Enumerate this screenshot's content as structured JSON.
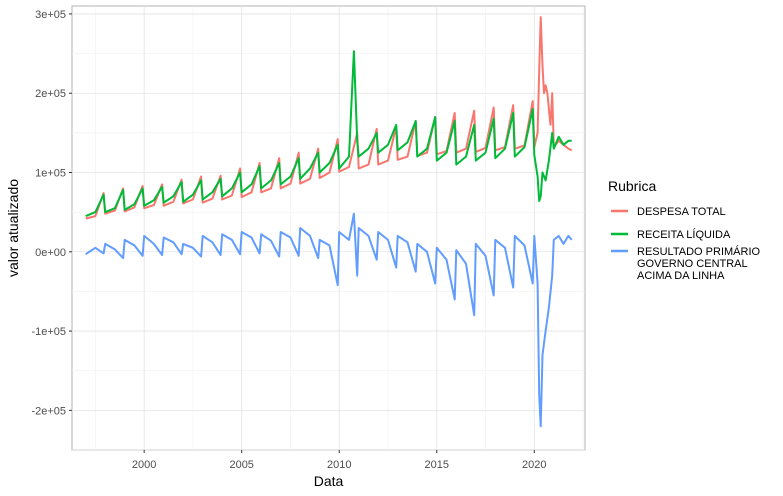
{
  "chart_data": {
    "type": "line",
    "xlabel": "Data",
    "ylabel": "valor atualizado",
    "xlim": [
      1996.3,
      2022.6
    ],
    "ylim": [
      -250000,
      310000
    ],
    "x_ticks": [
      2000,
      2005,
      2010,
      2015,
      2020
    ],
    "x_tick_labels": [
      "2000",
      "2005",
      "2010",
      "2015",
      "2020"
    ],
    "y_ticks": [
      -200000,
      -100000,
      0,
      100000,
      200000,
      300000
    ],
    "y_tick_labels": [
      "-2e+05",
      "-1e+05",
      "0e+00",
      "1e+05",
      "2e+05",
      "3e+05"
    ],
    "grid": true,
    "legend_position": "right",
    "legend_title": "Rubrica",
    "series": [
      {
        "name": "DESPESA TOTAL",
        "label_lines": [
          "DESPESA TOTAL"
        ],
        "color": "#f8766d",
        "x": [
          1997.0,
          1997.5,
          1997.92,
          1998.0,
          1998.5,
          1998.92,
          1999.0,
          1999.5,
          1999.92,
          2000.0,
          2000.5,
          2000.92,
          2001.0,
          2001.5,
          2001.92,
          2002.0,
          2002.5,
          2002.92,
          2003.0,
          2003.5,
          2003.92,
          2004.0,
          2004.5,
          2004.92,
          2005.0,
          2005.5,
          2005.92,
          2006.0,
          2006.5,
          2006.92,
          2007.0,
          2007.5,
          2007.92,
          2008.0,
          2008.5,
          2008.92,
          2009.0,
          2009.5,
          2009.92,
          2010.0,
          2010.5,
          2010.92,
          2011.0,
          2011.5,
          2011.92,
          2012.0,
          2012.5,
          2012.92,
          2013.0,
          2013.5,
          2013.92,
          2014.0,
          2014.5,
          2014.92,
          2015.0,
          2015.5,
          2015.92,
          2016.0,
          2016.5,
          2016.92,
          2017.0,
          2017.5,
          2017.92,
          2018.0,
          2018.5,
          2018.92,
          2019.0,
          2019.5,
          2019.92,
          2020.0,
          2020.17,
          2020.25,
          2020.33,
          2020.42,
          2020.5,
          2020.58,
          2020.67,
          2020.75,
          2020.83,
          2020.92,
          2021.0,
          2021.25,
          2021.5,
          2021.75,
          2021.92
        ],
        "y": [
          42000,
          45000,
          74000,
          48000,
          52000,
          80000,
          51000,
          56000,
          83000,
          55000,
          59000,
          85000,
          58000,
          63000,
          91000,
          61000,
          66000,
          95000,
          62000,
          67000,
          96000,
          66000,
          71000,
          105000,
          69000,
          75000,
          112000,
          75000,
          80000,
          118000,
          80000,
          86000,
          125000,
          86000,
          92000,
          130000,
          93000,
          100000,
          142000,
          101000,
          107000,
          150000,
          105000,
          110000,
          155000,
          110000,
          115000,
          158000,
          116000,
          120000,
          165000,
          121000,
          125000,
          170000,
          123000,
          127000,
          175000,
          125000,
          130000,
          178000,
          126000,
          131000,
          182000,
          128000,
          132000,
          185000,
          130000,
          134000,
          190000,
          132000,
          150000,
          228000,
          296000,
          235000,
          200000,
          210000,
          200000,
          180000,
          160000,
          200000,
          132000,
          140000,
          135000,
          130000,
          128000
        ]
      },
      {
        "name": "RECEITA LÍQUIDA",
        "label_lines": [
          "RECEITA LÍQUIDA"
        ],
        "color": "#00ba38",
        "x": [
          1997.0,
          1997.5,
          1997.92,
          1998.0,
          1998.5,
          1998.92,
          1999.0,
          1999.5,
          1999.92,
          2000.0,
          2000.5,
          2000.92,
          2001.0,
          2001.5,
          2001.92,
          2002.0,
          2002.5,
          2002.92,
          2003.0,
          2003.5,
          2003.92,
          2004.0,
          2004.5,
          2004.92,
          2005.0,
          2005.5,
          2005.92,
          2006.0,
          2006.5,
          2006.92,
          2007.0,
          2007.5,
          2007.92,
          2008.0,
          2008.5,
          2008.92,
          2009.0,
          2009.5,
          2009.92,
          2010.0,
          2010.5,
          2010.75,
          2010.92,
          2011.0,
          2011.5,
          2011.92,
          2012.0,
          2012.5,
          2012.92,
          2013.0,
          2013.5,
          2013.92,
          2014.0,
          2014.5,
          2014.92,
          2015.0,
          2015.5,
          2015.92,
          2016.0,
          2016.5,
          2016.92,
          2017.0,
          2017.5,
          2017.92,
          2018.0,
          2018.5,
          2018.92,
          2019.0,
          2019.5,
          2019.92,
          2020.0,
          2020.17,
          2020.25,
          2020.33,
          2020.42,
          2020.58,
          2020.75,
          2020.92,
          2021.0,
          2021.25,
          2021.5,
          2021.75,
          2021.92
        ],
        "y": [
          45000,
          50000,
          72000,
          50000,
          55000,
          78000,
          53000,
          60000,
          80000,
          58000,
          65000,
          82000,
          62000,
          70000,
          88000,
          63000,
          72000,
          90000,
          66000,
          75000,
          92000,
          70000,
          80000,
          100000,
          75000,
          85000,
          108000,
          80000,
          90000,
          112000,
          85000,
          95000,
          118000,
          92000,
          105000,
          125000,
          100000,
          112000,
          135000,
          105000,
          120000,
          253000,
          140000,
          120000,
          130000,
          150000,
          125000,
          135000,
          160000,
          128000,
          138000,
          165000,
          120000,
          130000,
          170000,
          115000,
          125000,
          165000,
          110000,
          120000,
          160000,
          115000,
          125000,
          168000,
          118000,
          130000,
          175000,
          120000,
          132000,
          180000,
          122000,
          95000,
          64000,
          70000,
          100000,
          90000,
          115000,
          150000,
          130000,
          145000,
          135000,
          140000,
          140000
        ]
      },
      {
        "name": "RESULTADO PRIMÁRIO GOVERNO CENTRAL ACIMA DA LINHA",
        "label_lines": [
          "RESULTADO PRIMÁRIO",
          "GOVERNO CENTRAL",
          "ACIMA DA LINHA"
        ],
        "color": "#619cff",
        "x": [
          1997.0,
          1997.5,
          1997.92,
          1998.0,
          1998.5,
          1998.92,
          1999.0,
          1999.5,
          1999.92,
          2000.0,
          2000.5,
          2000.92,
          2001.0,
          2001.5,
          2001.92,
          2002.0,
          2002.5,
          2002.92,
          2003.0,
          2003.5,
          2003.92,
          2004.0,
          2004.5,
          2004.92,
          2005.0,
          2005.5,
          2005.92,
          2006.0,
          2006.5,
          2006.92,
          2007.0,
          2007.5,
          2007.92,
          2008.0,
          2008.5,
          2008.92,
          2009.0,
          2009.5,
          2009.92,
          2010.0,
          2010.5,
          2010.75,
          2010.92,
          2011.0,
          2011.5,
          2011.92,
          2012.0,
          2012.5,
          2012.92,
          2013.0,
          2013.5,
          2013.92,
          2014.0,
          2014.5,
          2014.92,
          2015.0,
          2015.5,
          2015.92,
          2016.0,
          2016.5,
          2016.92,
          2017.0,
          2017.5,
          2017.92,
          2018.0,
          2018.5,
          2018.92,
          2019.0,
          2019.5,
          2019.92,
          2020.0,
          2020.17,
          2020.25,
          2020.33,
          2020.42,
          2020.58,
          2020.75,
          2020.92,
          2021.0,
          2021.25,
          2021.5,
          2021.75,
          2021.92
        ],
        "y": [
          -3000,
          5000,
          -2000,
          10000,
          3000,
          -8000,
          15000,
          8000,
          -5000,
          20000,
          10000,
          -4000,
          18000,
          12000,
          -3000,
          10000,
          5000,
          -6000,
          20000,
          12000,
          -4000,
          22000,
          15000,
          -3000,
          25000,
          18000,
          -2000,
          22000,
          14000,
          -6000,
          25000,
          18000,
          -5000,
          30000,
          20000,
          -8000,
          15000,
          8000,
          -42000,
          25000,
          15000,
          48000,
          -30000,
          30000,
          20000,
          -10000,
          25000,
          15000,
          -20000,
          20000,
          12000,
          -25000,
          10000,
          0,
          -40000,
          5000,
          -10000,
          -60000,
          2000,
          -15000,
          -80000,
          10000,
          -5000,
          -55000,
          15000,
          5000,
          -45000,
          20000,
          8000,
          -40000,
          20000,
          -40000,
          -180000,
          -220000,
          -130000,
          -100000,
          -70000,
          -30000,
          15000,
          20000,
          10000,
          20000,
          15000
        ]
      }
    ]
  }
}
